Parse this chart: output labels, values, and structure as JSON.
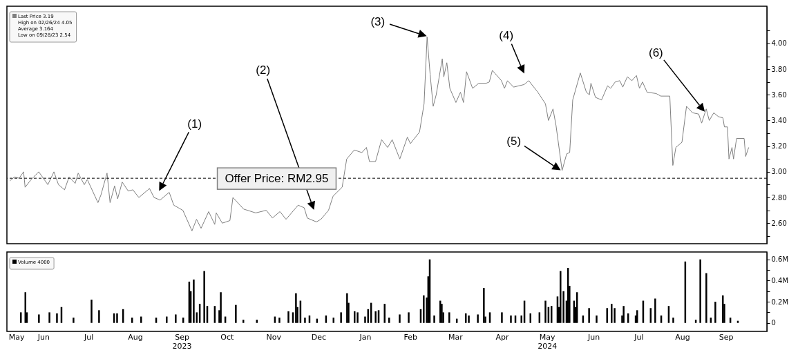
{
  "chart_data": [
    {
      "type": "line",
      "color": "#808080",
      "xlim": [
        "2023-05-25",
        "2024-10-07"
      ],
      "ylim": [
        2.44,
        4.29
      ],
      "tick_labels": "y",
      "yticks": [
        {
          "value": 2.5,
          "label": null
        },
        {
          "value": 2.6,
          "label": "2.60"
        },
        {
          "value": 2.7,
          "label": null
        },
        {
          "value": 2.8,
          "label": "2.80"
        },
        {
          "value": 2.9,
          "label": null
        },
        {
          "value": 3.0,
          "label": "3.00"
        },
        {
          "value": 3.1,
          "label": null
        },
        {
          "value": 3.2,
          "label": "3.20"
        },
        {
          "value": 3.3,
          "label": null
        },
        {
          "value": 3.4,
          "label": "3.40"
        },
        {
          "value": 3.5,
          "label": null
        },
        {
          "value": 3.6,
          "label": "3.60"
        },
        {
          "value": 3.7,
          "label": null
        },
        {
          "value": 3.8,
          "label": "3.80"
        },
        {
          "value": 3.9,
          "label": null
        },
        {
          "value": 4.0,
          "label": "4.00"
        },
        {
          "value": 4.1,
          "label": null
        }
      ],
      "x": [
        "2023-05-27",
        "2023-05-30",
        "2023-06-02",
        "2023-06-05",
        "2023-06-06",
        "2023-06-10",
        "2023-06-15",
        "2023-06-21",
        "2023-06-25",
        "2023-06-28",
        "2023-07-02",
        "2023-07-05",
        "2023-07-09",
        "2023-07-11",
        "2023-07-15",
        "2023-07-17",
        "2023-07-24",
        "2023-07-26",
        "2023-07-30",
        "2023-08-01",
        "2023-08-04",
        "2023-08-06",
        "2023-08-09",
        "2023-08-13",
        "2023-08-16",
        "2023-08-20",
        "2023-08-27",
        "2023-08-30",
        "2023-09-03",
        "2023-09-09",
        "2023-09-12",
        "2023-09-18",
        "2023-09-24",
        "2023-09-27",
        "2023-09-30",
        "2023-10-05",
        "2023-10-09",
        "2023-10-10",
        "2023-10-14",
        "2023-10-19",
        "2023-10-21",
        "2023-10-28",
        "2023-11-05",
        "2023-11-12",
        "2023-11-16",
        "2023-11-21",
        "2023-11-25",
        "2023-12-03",
        "2023-12-07",
        "2023-12-09",
        "2023-12-15",
        "2023-12-18",
        "2023-12-23",
        "2023-12-26",
        "2024-01-01",
        "2024-01-04",
        "2024-01-09",
        "2024-01-14",
        "2024-01-17",
        "2024-01-19",
        "2024-01-23",
        "2024-01-27",
        "2024-01-31",
        "2024-02-03",
        "2024-02-08",
        "2024-02-13",
        "2024-02-15",
        "2024-02-21",
        "2024-02-24",
        "2024-02-25",
        "2024-02-26",
        "2024-02-28",
        "2024-03-01",
        "2024-03-03",
        "2024-03-07",
        "2024-03-08",
        "2024-03-10",
        "2024-03-12",
        "2024-03-16",
        "2024-03-19",
        "2024-03-21",
        "2024-03-23",
        "2024-03-27",
        "2024-03-31",
        "2024-04-05",
        "2024-04-07",
        "2024-04-09",
        "2024-04-15",
        "2024-04-17",
        "2024-04-19",
        "2024-04-23",
        "2024-04-30",
        "2024-05-03",
        "2024-05-09",
        "2024-05-14",
        "2024-05-16",
        "2024-05-19",
        "2024-05-21",
        "2024-05-25",
        "2024-05-28",
        "2024-05-30",
        "2024-06-01",
        "2024-06-06",
        "2024-06-10",
        "2024-06-12",
        "2024-06-13",
        "2024-06-16",
        "2024-06-20",
        "2024-06-24",
        "2024-06-26",
        "2024-06-29",
        "2024-07-02",
        "2024-07-04",
        "2024-07-07",
        "2024-07-10",
        "2024-07-13",
        "2024-07-15",
        "2024-07-17",
        "2024-07-20",
        "2024-07-26",
        "2024-07-29",
        "2024-08-04",
        "2024-08-06",
        "2024-08-08",
        "2024-08-12",
        "2024-08-15",
        "2024-08-19",
        "2024-08-23",
        "2024-08-25",
        "2024-08-28",
        "2024-08-30",
        "2024-09-02",
        "2024-09-05",
        "2024-09-08",
        "2024-09-09",
        "2024-09-11",
        "2024-09-12",
        "2024-09-14",
        "2024-09-15",
        "2024-09-17",
        "2024-09-22",
        "2024-09-23",
        "2024-09-25"
      ],
      "values": [
        2.93,
        2.96,
        2.95,
        3.0,
        2.88,
        2.94,
        3.0,
        2.9,
        3.0,
        2.9,
        2.86,
        2.96,
        2.91,
        2.99,
        2.9,
        2.94,
        2.76,
        2.82,
        2.99,
        2.76,
        2.89,
        2.79,
        2.92,
        2.85,
        2.86,
        2.8,
        2.87,
        2.8,
        2.78,
        2.84,
        2.74,
        2.7,
        2.54,
        2.63,
        2.56,
        2.69,
        2.59,
        2.68,
        2.6,
        2.62,
        2.8,
        2.71,
        2.68,
        2.7,
        2.64,
        2.69,
        2.63,
        2.74,
        2.72,
        2.64,
        2.61,
        2.63,
        2.7,
        2.81,
        2.88,
        3.1,
        3.17,
        3.15,
        3.19,
        3.08,
        3.08,
        3.25,
        3.19,
        3.25,
        3.1,
        3.27,
        3.22,
        3.31,
        3.53,
        3.79,
        4.05,
        3.76,
        3.51,
        3.6,
        3.88,
        3.74,
        3.85,
        3.65,
        3.54,
        3.62,
        3.54,
        3.78,
        3.65,
        3.69,
        3.69,
        3.7,
        3.79,
        3.71,
        3.65,
        3.71,
        3.66,
        3.68,
        3.71,
        3.62,
        3.53,
        3.4,
        3.49,
        3.36,
        3.01,
        3.14,
        3.15,
        3.56,
        3.77,
        3.62,
        3.6,
        3.69,
        3.58,
        3.56,
        3.67,
        3.65,
        3.7,
        3.71,
        3.66,
        3.74,
        3.71,
        3.75,
        3.65,
        3.7,
        3.62,
        3.61,
        3.59,
        3.59,
        3.05,
        3.19,
        3.23,
        3.51,
        3.46,
        3.45,
        3.38,
        3.49,
        3.4,
        3.46,
        3.43,
        3.42,
        3.35,
        3.35,
        3.1,
        3.19,
        3.1,
        3.26,
        3.26,
        3.12,
        3.19
      ],
      "ref_lines": [
        {
          "axis": "y",
          "value": 2.95,
          "label": "Offer Price: RM2.95",
          "line_style": "dashed",
          "color": "#000000"
        }
      ],
      "annotations": [
        "Last Price 3.19",
        "High on 02/26/24 4.05",
        "Average 3.164",
        "Low on 09/28/23 2.54",
        "(1)",
        "(2)",
        "(3)",
        "(4)",
        "(5)",
        "(6)"
      ]
    },
    {
      "type": "bar",
      "color": "#000000",
      "xlim": [
        "2023-05-25",
        "2024-10-07"
      ],
      "ylim": [
        -0.08,
        0.67
      ],
      "xticks": [
        {
          "value": "2023-05-29",
          "label": "May"
        },
        {
          "value": "2023-06-16",
          "label": "Jun"
        },
        {
          "value": "2023-07-16",
          "label": "Jul"
        },
        {
          "value": "2023-08-16",
          "label": "Aug"
        },
        {
          "value": "2023-09-16",
          "label": "Sep\n2023"
        },
        {
          "value": "2023-10-16",
          "label": "Oct"
        },
        {
          "value": "2023-11-16",
          "label": "Nov"
        },
        {
          "value": "2023-12-16",
          "label": "Dec"
        },
        {
          "value": "2024-01-16",
          "label": "Jan"
        },
        {
          "value": "2024-02-15",
          "label": "Feb"
        },
        {
          "value": "2024-03-16",
          "label": "Mar"
        },
        {
          "value": "2024-04-16",
          "label": "Apr"
        },
        {
          "value": "2024-05-16",
          "label": "May\n2024"
        },
        {
          "value": "2024-06-16",
          "label": "Jun"
        },
        {
          "value": "2024-07-16",
          "label": "Jul"
        },
        {
          "value": "2024-08-14",
          "label": "Aug"
        },
        {
          "value": "2024-09-12",
          "label": "Sep"
        }
      ],
      "yticks": [
        0,
        {
          "value": 0.1,
          "label": null
        },
        {
          "value": 0.2,
          "label": "0.2M"
        },
        {
          "value": 0.3,
          "label": null
        },
        {
          "value": 0.4,
          "label": "0.4M"
        },
        {
          "value": 0.5,
          "label": null
        },
        {
          "value": 0.6,
          "label": "0.6M"
        }
      ],
      "x": [
        "2023-06-01",
        "2023-06-04",
        "2023-06-05",
        "2023-06-13",
        "2023-06-20",
        "2023-06-25",
        "2023-06-28",
        "2023-07-06",
        "2023-07-18",
        "2023-07-23",
        "2023-08-02",
        "2023-08-04",
        "2023-08-08",
        "2023-08-14",
        "2023-08-20",
        "2023-08-30",
        "2023-09-06",
        "2023-09-12",
        "2023-09-17",
        "2023-09-21",
        "2023-09-22",
        "2023-09-24",
        "2023-09-26",
        "2023-09-28",
        "2023-10-01",
        "2023-10-03",
        "2023-10-08",
        "2023-10-11",
        "2023-10-12",
        "2023-10-15",
        "2023-10-22",
        "2023-10-27",
        "2023-11-05",
        "2023-11-17",
        "2023-11-20",
        "2023-11-26",
        "2023-11-29",
        "2023-12-01",
        "2023-12-02",
        "2023-12-04",
        "2023-12-07",
        "2023-12-10",
        "2023-12-15",
        "2023-12-21",
        "2023-12-26",
        "2023-12-31",
        "2024-01-04",
        "2024-01-05",
        "2024-01-09",
        "2024-01-11",
        "2024-01-16",
        "2024-01-18",
        "2024-01-20",
        "2024-01-23",
        "2024-01-25",
        "2024-01-29",
        "2024-02-01",
        "2024-02-08",
        "2024-02-14",
        "2024-02-22",
        "2024-02-24",
        "2024-02-26",
        "2024-02-27",
        "2024-02-28",
        "2024-03-02",
        "2024-03-06",
        "2024-03-07",
        "2024-03-08",
        "2024-03-12",
        "2024-03-17",
        "2024-03-23",
        "2024-03-25",
        "2024-03-31",
        "2024-04-04",
        "2024-04-05",
        "2024-04-08",
        "2024-04-16",
        "2024-04-22",
        "2024-04-25",
        "2024-04-29",
        "2024-05-01",
        "2024-05-05",
        "2024-05-11",
        "2024-05-15",
        "2024-05-17",
        "2024-05-19",
        "2024-05-23",
        "2024-05-24",
        "2024-05-25",
        "2024-05-27",
        "2024-05-29",
        "2024-05-30",
        "2024-05-31",
        "2024-06-03",
        "2024-06-04",
        "2024-06-05",
        "2024-06-09",
        "2024-06-13",
        "2024-06-18",
        "2024-06-25",
        "2024-06-28",
        "2024-06-30",
        "2024-07-05",
        "2024-07-06",
        "2024-07-09",
        "2024-07-14",
        "2024-07-15",
        "2024-07-19",
        "2024-07-24",
        "2024-07-27",
        "2024-07-31",
        "2024-08-05",
        "2024-08-08",
        "2024-08-16",
        "2024-08-23",
        "2024-08-26",
        "2024-08-30",
        "2024-09-02",
        "2024-09-05",
        "2024-09-10",
        "2024-09-11",
        "2024-09-15",
        "2024-09-20"
      ],
      "values": [
        0.1,
        0.29,
        0.1,
        0.08,
        0.1,
        0.09,
        0.15,
        0.05,
        0.22,
        0.12,
        0.09,
        0.09,
        0.13,
        0.05,
        0.06,
        0.05,
        0.06,
        0.08,
        0.05,
        0.39,
        0.3,
        0.41,
        0.1,
        0.18,
        0.49,
        0.16,
        0.16,
        0.12,
        0.29,
        0.06,
        0.17,
        0.03,
        0.03,
        0.06,
        0.05,
        0.11,
        0.1,
        0.28,
        0.15,
        0.21,
        0.05,
        0.07,
        0.04,
        0.07,
        0.05,
        0.1,
        0.28,
        0.19,
        0.11,
        0.1,
        0.06,
        0.13,
        0.19,
        0.11,
        0.12,
        0.18,
        0.05,
        0.08,
        0.1,
        0.13,
        0.26,
        0.24,
        0.44,
        0.6,
        0.07,
        0.21,
        0.18,
        0.1,
        0.1,
        0.04,
        0.09,
        0.07,
        0.08,
        0.33,
        0.06,
        0.1,
        0.1,
        0.07,
        0.07,
        0.07,
        0.21,
        0.09,
        0.1,
        0.21,
        0.15,
        0.16,
        0.25,
        0.15,
        0.49,
        0.3,
        0.21,
        0.52,
        0.35,
        0.21,
        0.15,
        0.29,
        0.07,
        0.14,
        0.07,
        0.14,
        0.18,
        0.14,
        0.07,
        0.16,
        0.09,
        0.07,
        0.12,
        0.21,
        0.14,
        0.23,
        0.07,
        0.16,
        0.05,
        0.58,
        0.03,
        0.6,
        0.47,
        0.05,
        0.2,
        0.26,
        0.18,
        0.05,
        0.02
      ],
      "annotations": [
        "Volume 4000"
      ]
    }
  ]
}
